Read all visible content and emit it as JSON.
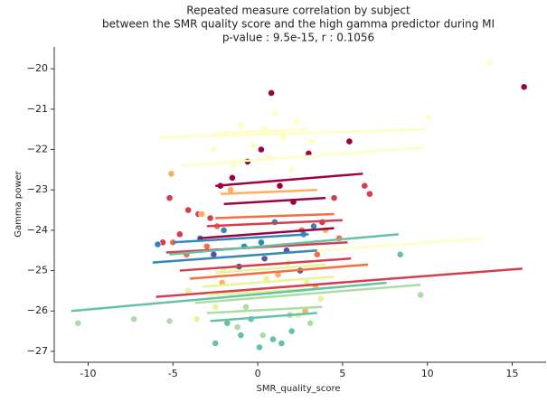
{
  "chart_data": {
    "type": "scatter",
    "title": [
      "Repeated measure correlation by subject",
      "between the SMR quality score and the high gamma predictor during MI",
      "p-value : 9.5e-15, r : 0.1056"
    ],
    "x_label": "SMR_quality_score",
    "y_label": "Gamma power",
    "xlim": [
      -12,
      17
    ],
    "xticks": [
      -10,
      -5,
      0,
      5,
      10,
      15
    ],
    "ylim": [
      -27.27,
      -19.46
    ],
    "yticks": [
      -27,
      -26,
      -25,
      -24,
      -23,
      -22,
      -21,
      -20
    ],
    "yticks_labels": [
      "−27",
      "−26",
      "−25",
      "−24",
      "−23",
      "−22",
      "−21",
      "−20"
    ],
    "series": [
      {
        "color": "#9e0142",
        "x": [
          0.8,
          -0.6,
          1.3,
          3.0,
          5.4,
          15.7,
          -1.5,
          2.1,
          0.2,
          -2.2
        ],
        "values": [
          -20.6,
          -22.3,
          -22.9,
          -22.1,
          -21.8,
          -20.45,
          -22.7,
          -23.3,
          -22.0,
          -22.9
        ]
      },
      {
        "color": "#d53e4f",
        "x": [
          -5.2,
          -4.1,
          -3.5,
          -2.8,
          6.3,
          6.6,
          -4.6,
          4.5,
          -5.6,
          3.8
        ],
        "values": [
          -23.2,
          -23.5,
          -23.6,
          -23.7,
          -22.9,
          -23.1,
          -24.1,
          -23.2,
          -24.3,
          -23.8
        ]
      },
      {
        "color": "#f46d43",
        "x": [
          -5.0,
          -4.2,
          -3.0,
          4.8,
          3.5,
          -2.4,
          2.6
        ],
        "values": [
          -24.3,
          -24.6,
          -24.4,
          -24.2,
          -24.6,
          -23.9,
          -24.0
        ]
      },
      {
        "color": "#fdae61",
        "x": [
          -5.1,
          -3.3,
          -2.1,
          3.4,
          4.0,
          1.2,
          -1.6,
          2.8
        ],
        "values": [
          -22.6,
          -23.6,
          -25.3,
          -25.4,
          -24.0,
          -25.1,
          -23.0,
          -26.0
        ]
      },
      {
        "color": "#ffffbf",
        "x": [
          13.7,
          10.1,
          -1.9,
          -1.0,
          0.4,
          1.5,
          2.3,
          -0.3,
          1.0,
          -2.6,
          3.2,
          0.6,
          -1.4,
          2.0
        ],
        "values": [
          -19.85,
          -21.2,
          -21.6,
          -21.4,
          -21.5,
          -21.7,
          -21.3,
          -21.9,
          -21.1,
          -22.0,
          -21.8,
          -22.2,
          -22.4,
          -22.5
        ]
      },
      {
        "color": "#e6f598",
        "x": [
          -4.1,
          -3.6,
          -2.5,
          2.9,
          3.7,
          1.8,
          -1.3,
          0.5,
          -2.0,
          2.4
        ],
        "values": [
          -25.5,
          -26.2,
          -25.9,
          -25.3,
          -25.7,
          -24.8,
          -24.9,
          -25.2,
          -25.0,
          -26.1
        ]
      },
      {
        "color": "#abdda4",
        "x": [
          -10.6,
          -7.3,
          -5.2,
          -1.2,
          0.3,
          1.9,
          -0.7,
          9.6,
          3.1
        ],
        "values": [
          -26.3,
          -26.2,
          -26.25,
          -26.4,
          -26.6,
          -26.1,
          -25.9,
          -25.6,
          -26.3
        ]
      },
      {
        "color": "#66c2a5",
        "x": [
          -2.5,
          -1.0,
          0.1,
          0.9,
          2.0,
          -1.8,
          1.4,
          8.4,
          -0.4
        ],
        "values": [
          -26.8,
          -26.6,
          -26.9,
          -26.7,
          -26.5,
          -26.3,
          -26.8,
          -24.6,
          -26.2
        ]
      },
      {
        "color": "#3288bd",
        "x": [
          -5.9,
          -3.4,
          -2.0,
          1.0,
          2.7,
          -0.8,
          3.3,
          0.2
        ],
        "values": [
          -24.35,
          -24.2,
          -24.0,
          -23.8,
          -24.1,
          -24.4,
          -23.9,
          -24.3
        ]
      },
      {
        "color": "#5e4fa2",
        "x": [
          -2.6,
          -1.1,
          0.4,
          1.7,
          2.5
        ],
        "values": [
          -24.6,
          -24.9,
          -24.7,
          -24.5,
          -25.0
        ]
      }
    ],
    "lines": [
      {
        "color": "#ffffbf",
        "x": [
          -5.8,
          10.0
        ],
        "values": [
          -21.7,
          -21.5
        ]
      },
      {
        "color": "#ffffbf",
        "x": [
          -4.5,
          9.8
        ],
        "values": [
          -22.4,
          -21.95
        ]
      },
      {
        "color": "#ffffbf",
        "x": [
          -2.5,
          3.0
        ],
        "values": [
          -21.6,
          -21.5
        ]
      },
      {
        "color": "#9e0142",
        "x": [
          -2.5,
          6.2
        ],
        "values": [
          -22.9,
          -22.6
        ]
      },
      {
        "color": "#9e0142",
        "x": [
          -2.0,
          4.0
        ],
        "values": [
          -23.35,
          -23.2
        ]
      },
      {
        "color": "#fdae61",
        "x": [
          -2.2,
          3.5
        ],
        "values": [
          -23.1,
          -23.0
        ]
      },
      {
        "color": "#f46d43",
        "x": [
          -2.5,
          4.5
        ],
        "values": [
          -23.7,
          -23.6
        ]
      },
      {
        "color": "#d53e4f",
        "x": [
          -3.0,
          5.0
        ],
        "values": [
          -23.9,
          -23.75
        ]
      },
      {
        "color": "#9e0142",
        "x": [
          -3.5,
          4.5
        ],
        "values": [
          -24.2,
          -23.95
        ]
      },
      {
        "color": "#3288bd",
        "x": [
          -5.0,
          3.0
        ],
        "values": [
          -24.3,
          -24.1
        ]
      },
      {
        "color": "#d53e4f",
        "x": [
          -5.4,
          5.3
        ],
        "values": [
          -24.55,
          -24.3
        ]
      },
      {
        "color": "#66c2a5",
        "x": [
          -5.2,
          8.3
        ],
        "values": [
          -24.6,
          -24.1
        ]
      },
      {
        "color": "#ffffbf",
        "x": [
          -4.0,
          13.3
        ],
        "values": [
          -24.75,
          -24.2
        ]
      },
      {
        "color": "#3288bd",
        "x": [
          -6.2,
          3.5
        ],
        "values": [
          -24.8,
          -24.5
        ]
      },
      {
        "color": "#d53e4f",
        "x": [
          -4.6,
          5.5
        ],
        "values": [
          -25.0,
          -24.7
        ]
      },
      {
        "color": "#f46d43",
        "x": [
          -4.0,
          6.5
        ],
        "values": [
          -25.2,
          -24.85
        ]
      },
      {
        "color": "#e6f598",
        "x": [
          -3.3,
          4.5
        ],
        "values": [
          -25.4,
          -25.15
        ]
      },
      {
        "color": "#d53e4f",
        "x": [
          -6.0,
          15.6
        ],
        "values": [
          -25.65,
          -24.95
        ]
      },
      {
        "color": "#abdda4",
        "x": [
          -3.7,
          9.6
        ],
        "values": [
          -25.8,
          -25.35
        ]
      },
      {
        "color": "#e6f598",
        "x": [
          -3.0,
          3.5
        ],
        "values": [
          -25.6,
          -25.45
        ]
      },
      {
        "color": "#66c2a5",
        "x": [
          -11.0,
          7.6
        ],
        "values": [
          -26.0,
          -25.3
        ]
      },
      {
        "color": "#abdda4",
        "x": [
          -3.0,
          3.8
        ],
        "values": [
          -26.05,
          -25.9
        ]
      },
      {
        "color": "#66c2a5",
        "x": [
          -2.8,
          3.5
        ],
        "values": [
          -26.25,
          -26.05
        ]
      },
      {
        "color": "#e6f598",
        "x": [
          -2.5,
          4.0
        ],
        "values": [
          -25.05,
          -24.85
        ]
      }
    ]
  }
}
